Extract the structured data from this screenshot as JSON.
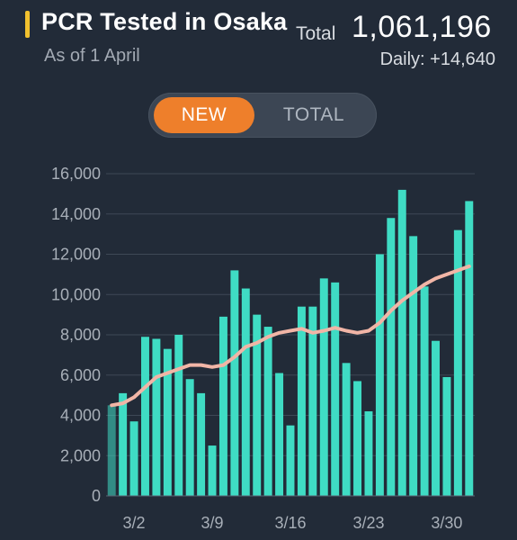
{
  "header": {
    "title": "PCR Tested in Osaka",
    "as_of": "As of 1 April",
    "total_label": "Total",
    "total_value": "1,061,196",
    "daily": "Daily: +14,640",
    "accent_color": "#f2c12e"
  },
  "toggle": {
    "new_label": "NEW",
    "total_label": "TOTAL",
    "active": "NEW",
    "active_color": "#ee7f2b"
  },
  "chart_data": {
    "type": "bar",
    "title": "",
    "xlabel": "",
    "ylabel": "",
    "ylim": [
      0,
      16000
    ],
    "yticks": [
      0,
      2000,
      4000,
      6000,
      8000,
      10000,
      12000,
      14000,
      16000
    ],
    "ytick_labels": [
      "0",
      "2,000",
      "4,000",
      "6,000",
      "8,000",
      "10,000",
      "12,000",
      "14,000",
      "16,000"
    ],
    "grid": true,
    "bar_color": "#3fdcc4",
    "line_color": "#f1b5a6",
    "categories": [
      "2/29",
      "3/1",
      "3/2",
      "3/3",
      "3/4",
      "3/5",
      "3/6",
      "3/7",
      "3/8",
      "3/9",
      "3/10",
      "3/11",
      "3/12",
      "3/13",
      "3/14",
      "3/15",
      "3/16",
      "3/17",
      "3/18",
      "3/19",
      "3/20",
      "3/21",
      "3/22",
      "3/23",
      "3/24",
      "3/25",
      "3/26",
      "3/27",
      "3/28",
      "3/29",
      "3/30",
      "3/31",
      "4/1"
    ],
    "xtick_labels": [
      {
        "index": 2,
        "label": "3/2"
      },
      {
        "index": 9,
        "label": "3/9"
      },
      {
        "index": 16,
        "label": "3/16"
      },
      {
        "index": 23,
        "label": "3/23"
      },
      {
        "index": 30,
        "label": "3/30"
      }
    ],
    "series": [
      {
        "kind": "bar",
        "values": [
          4500,
          5100,
          3700,
          7900,
          7800,
          7300,
          8000,
          5800,
          5100,
          2500,
          8900,
          11200,
          10300,
          9000,
          8400,
          6100,
          3500,
          9400,
          9400,
          10800,
          10600,
          6600,
          5700,
          4200,
          12000,
          13800,
          15200,
          12900,
          10400,
          7700,
          5900,
          13200,
          14640
        ]
      },
      {
        "kind": "line",
        "values": [
          4500,
          4600,
          4900,
          5400,
          5900,
          6100,
          6300,
          6500,
          6500,
          6400,
          6500,
          6900,
          7400,
          7600,
          7900,
          8100,
          8200,
          8300,
          8100,
          8200,
          8350,
          8200,
          8100,
          8200,
          8600,
          9200,
          9700,
          10100,
          10500,
          10800,
          11000,
          11200,
          11400
        ]
      }
    ]
  }
}
